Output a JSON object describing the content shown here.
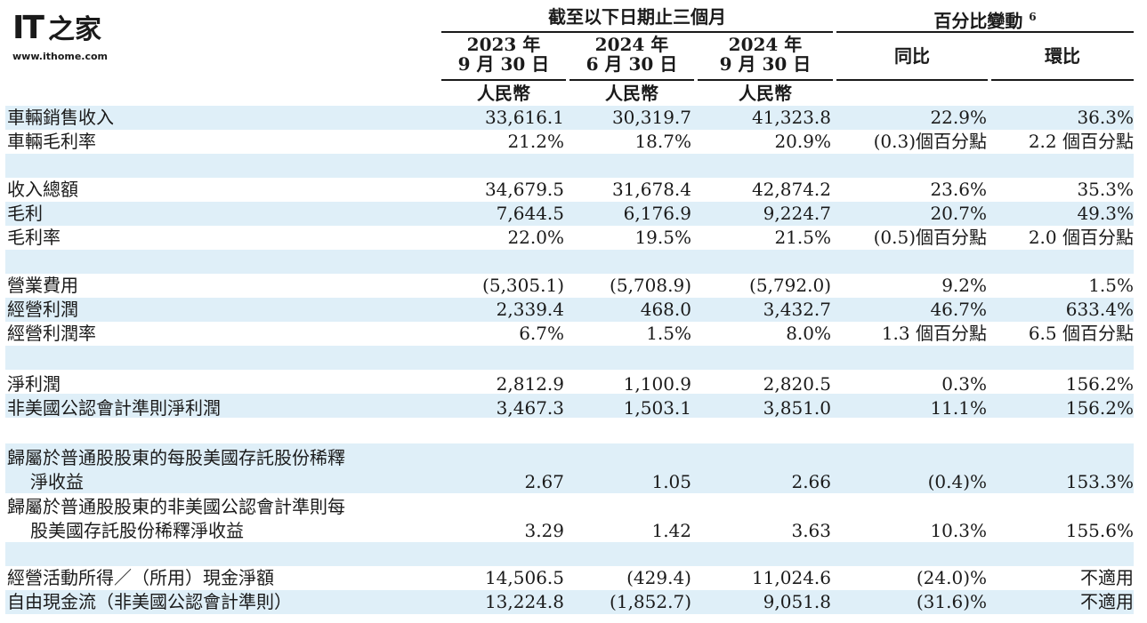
{
  "logo": {
    "brand_it": "IT",
    "brand_cn": "之家",
    "url": "www.ithome.com"
  },
  "header": {
    "group_quarter": "截至以下日期止三個月",
    "group_change": "百分比變動",
    "group_change_note": "6",
    "col1": {
      "year": "2023 年",
      "date": "9 月 30 日",
      "unit": "人民幣"
    },
    "col2": {
      "year": "2024 年",
      "date": "6 月 30 日",
      "unit": "人民幣"
    },
    "col3": {
      "year": "2024 年",
      "date": "9 月 30 日",
      "unit": "人民幣"
    },
    "col4": "同比",
    "col5": "環比"
  },
  "rows": [
    {
      "label": "車輛銷售收入",
      "v1": "33,616.1",
      "v2": "30,319.7",
      "v3": "41,323.8",
      "yoy": "22.9%",
      "qoq": "36.3%"
    },
    {
      "label": "車輛毛利率",
      "v1": "21.2%",
      "v2": "18.7%",
      "v3": "20.9%",
      "yoy": "(0.3)個百分點",
      "qoq": "2.2 個百分點"
    },
    {
      "label": "收入總額",
      "v1": "34,679.5",
      "v2": "31,678.4",
      "v3": "42,874.2",
      "yoy": "23.6%",
      "qoq": "35.3%"
    },
    {
      "label": "毛利",
      "v1": "7,644.5",
      "v2": "6,176.9",
      "v3": "9,224.7",
      "yoy": "20.7%",
      "qoq": "49.3%"
    },
    {
      "label": "毛利率",
      "v1": "22.0%",
      "v2": "19.5%",
      "v3": "21.5%",
      "yoy": "(0.5)個百分點",
      "qoq": "2.0 個百分點"
    },
    {
      "label": "營業費用",
      "v1": "(5,305.1)",
      "v2": "(5,708.9)",
      "v3": "(5,792.0)",
      "yoy": "9.2%",
      "qoq": "1.5%"
    },
    {
      "label": "經營利潤",
      "v1": "2,339.4",
      "v2": "468.0",
      "v3": "3,432.7",
      "yoy": "46.7%",
      "qoq": "633.4%"
    },
    {
      "label": "經營利潤率",
      "v1": "6.7%",
      "v2": "1.5%",
      "v3": "8.0%",
      "yoy": "1.3 個百分點",
      "qoq": "6.5 個百分點"
    },
    {
      "label": "淨利潤",
      "v1": "2,812.9",
      "v2": "1,100.9",
      "v3": "2,820.5",
      "yoy": "0.3%",
      "qoq": "156.2%"
    },
    {
      "label": "非美國公認會計準則淨利潤",
      "v1": "3,467.3",
      "v2": "1,503.1",
      "v3": "3,851.0",
      "yoy": "11.1%",
      "qoq": "156.2%"
    },
    {
      "label": "歸屬於普通股股東的每股美國存託股份稀釋",
      "label2": "淨收益",
      "v1": "2.67",
      "v2": "1.05",
      "v3": "2.66",
      "yoy": "(0.4)%",
      "qoq": "153.3%"
    },
    {
      "label": "歸屬於普通股股東的非美國公認會計準則每",
      "label2": "股美國存託股份稀釋淨收益",
      "v1": "3.29",
      "v2": "1.42",
      "v3": "3.63",
      "yoy": "10.3%",
      "qoq": "155.6%"
    },
    {
      "label": "經營活動所得／（所用）現金淨額",
      "v1": "14,506.5",
      "v2": "(429.4)",
      "v3": "11,024.6",
      "yoy": "(24.0)%",
      "qoq": "不適用"
    },
    {
      "label": "自由現金流（非美國公認會計準則）",
      "v1": "13,224.8",
      "v2": "(1,852.7)",
      "v3": "9,051.8",
      "yoy": "(31.6)%",
      "qoq": "不適用"
    }
  ]
}
